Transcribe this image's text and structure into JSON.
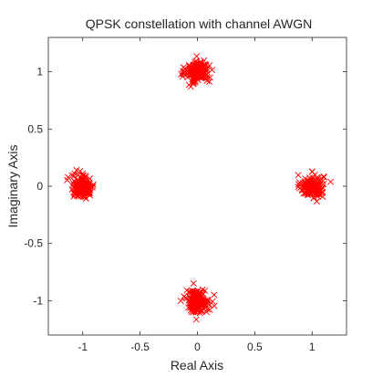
{
  "chart_data": {
    "type": "scatter",
    "title": "QPSK constellation with channel AWGN",
    "xlabel": "Real Axis",
    "ylabel": "Imaginary Axis",
    "xlim": [
      -1.3,
      1.3
    ],
    "ylim": [
      -1.3,
      1.3
    ],
    "xticks": [
      -1,
      -0.5,
      0,
      0.5,
      1
    ],
    "xtick_labels": [
      "-1",
      "-0.5",
      "0",
      "0.5",
      "1"
    ],
    "yticks": [
      -1,
      -0.5,
      0,
      0.5,
      1
    ],
    "ytick_labels": [
      "-1",
      "-0.5",
      "0",
      "0.5",
      "1"
    ],
    "grid": false,
    "legend": "none",
    "marker": "x",
    "marker_color": "#ff0000",
    "series": [
      {
        "points_per_cluster": 160,
        "noise_std": 0.05,
        "clusters": [
          {
            "x": 1,
            "y": 0
          },
          {
            "x": 0,
            "y": 1
          },
          {
            "x": -1,
            "y": 0
          },
          {
            "x": 0,
            "y": -1
          }
        ]
      }
    ]
  }
}
